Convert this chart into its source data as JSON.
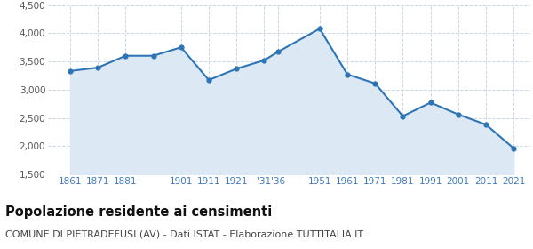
{
  "x_positions": [
    1861,
    1871,
    1881,
    1891,
    1901,
    1911,
    1921,
    1931,
    1936,
    1951,
    1961,
    1971,
    1981,
    1991,
    2001,
    2011,
    2021
  ],
  "y_values": [
    3330,
    3390,
    3600,
    3600,
    3750,
    3170,
    3370,
    3520,
    3670,
    4080,
    3270,
    3110,
    2530,
    2770,
    2560,
    2380,
    1960
  ],
  "tick_positions": [
    1861,
    1871,
    1881,
    1901,
    1911,
    1921,
    1931,
    1936,
    1951,
    1961,
    1971,
    1981,
    1991,
    2001,
    2011,
    2021
  ],
  "tick_labels": [
    "1861",
    "1871",
    "1881",
    "1901",
    "1911",
    "1921",
    "'31",
    "'36",
    "1951",
    "1961",
    "1971",
    "1981",
    "1991",
    "2001",
    "2011",
    "2021"
  ],
  "ylim": [
    1500,
    4500
  ],
  "yticks": [
    1500,
    2000,
    2500,
    3000,
    3500,
    4000,
    4500
  ],
  "ytick_labels": [
    "1,500",
    "2,000",
    "2,500",
    "3,000",
    "3,500",
    "4,000",
    "4,500"
  ],
  "line_color": "#2e75b6",
  "fill_color": "#dce9f5",
  "marker_color": "#2e75b6",
  "bg_color": "#ffffff",
  "grid_color": "#c8d8e8",
  "title": "Popolazione residente ai censimenti",
  "subtitle": "COMUNE DI PIETRADEFUSI (AV) - Dati ISTAT - Elaborazione TUTTITALIA.IT",
  "title_fontsize": 10.5,
  "subtitle_fontsize": 8,
  "tick_label_color": "#3a7abf",
  "ytick_label_color": "#555555",
  "xlim_left": 1853,
  "xlim_right": 2027
}
